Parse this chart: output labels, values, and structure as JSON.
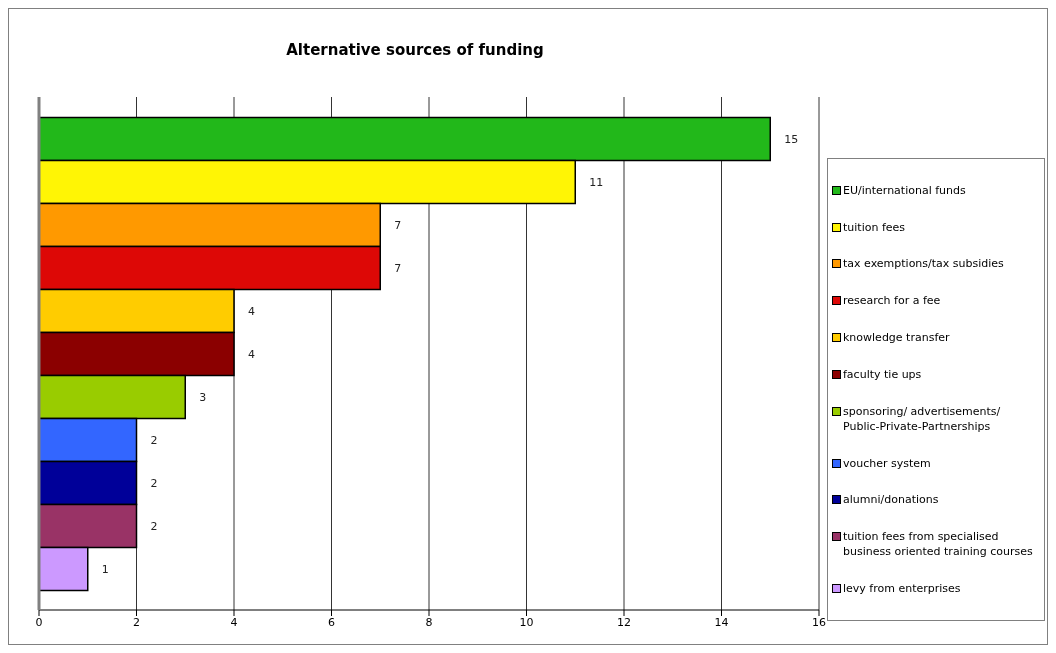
{
  "chart_data": {
    "type": "bar",
    "orientation": "horizontal",
    "title": "Alternative sources of funding",
    "categories": [
      null
    ],
    "series": [
      {
        "name": "EU/international funds",
        "color": "#22b81a",
        "values": [
          15
        ]
      },
      {
        "name": "tuition fees",
        "color": "#fff505",
        "values": [
          11
        ]
      },
      {
        "name": "tax exemptions/tax subsidies",
        "color": "#ff9900",
        "values": [
          7
        ]
      },
      {
        "name": "research for a fee",
        "color": "#dd0806",
        "values": [
          7
        ]
      },
      {
        "name": "knowledge transfer",
        "color": "#ffcc00",
        "values": [
          4
        ]
      },
      {
        "name": "faculty tie ups",
        "color": "#8b0000",
        "values": [
          4
        ]
      },
      {
        "name": "sponsoring/ advertisements/ Public-Private-Partnerships",
        "color": "#99cc00",
        "values": [
          3
        ]
      },
      {
        "name": "voucher system",
        "color": "#3366ff",
        "values": [
          2
        ]
      },
      {
        "name": "alumni/donations",
        "color": "#000099",
        "values": [
          2
        ]
      },
      {
        "name": "tuition fees from specialised business oriented training courses",
        "color": "#993366",
        "values": [
          2
        ]
      },
      {
        "name": "levy from enterprises",
        "color": "#cc99ff",
        "values": [
          1
        ]
      }
    ],
    "xlim": [
      0,
      16
    ],
    "xticks": [
      0,
      2,
      4,
      6,
      8,
      10,
      12,
      14,
      16
    ],
    "grid": "x",
    "legend": "right",
    "data_labels": true
  }
}
